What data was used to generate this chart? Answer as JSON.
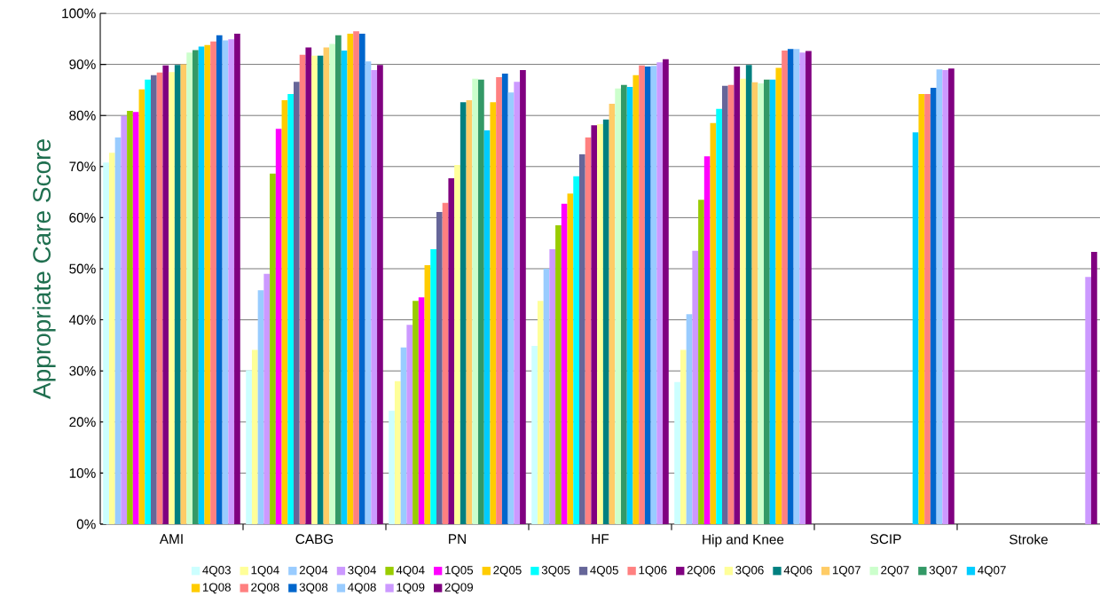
{
  "chart_data": {
    "type": "bar",
    "ylabel": "Appropriate Care Score",
    "categories": [
      "AMI",
      "CABG",
      "PN",
      "HF",
      "Hip and Knee",
      "SCIP",
      "Stroke"
    ],
    "ylim": [
      0,
      100
    ],
    "yticks": [
      {
        "value": 0,
        "label": "0%"
      },
      {
        "value": 10,
        "label": "10%"
      },
      {
        "value": 20,
        "label": "20%"
      },
      {
        "value": 30,
        "label": "30%"
      },
      {
        "value": 40,
        "label": "40%"
      },
      {
        "value": 50,
        "label": "50%"
      },
      {
        "value": 60,
        "label": "60%"
      },
      {
        "value": 70,
        "label": "70%"
      },
      {
        "value": 80,
        "label": "80%"
      },
      {
        "value": 90,
        "label": "90%"
      },
      {
        "value": 100,
        "label": "100%"
      }
    ],
    "grid": "y",
    "legend": "bottom",
    "series": [
      {
        "name": "4Q03",
        "color": "#ccffff",
        "values": [
          70.8,
          30.1,
          22.2,
          34.9,
          27.8,
          null,
          null
        ]
      },
      {
        "name": "1Q04",
        "color": "#ffff99",
        "values": [
          72.7,
          34.1,
          28.0,
          43.7,
          34.1,
          null,
          null
        ]
      },
      {
        "name": "2Q04",
        "color": "#99ccff",
        "values": [
          75.7,
          45.8,
          34.6,
          50.0,
          41.1,
          null,
          null
        ]
      },
      {
        "name": "3Q04",
        "color": "#cc99ff",
        "values": [
          79.9,
          49.0,
          39.0,
          53.8,
          53.5,
          null,
          null
        ]
      },
      {
        "name": "4Q04",
        "color": "#99cc00",
        "values": [
          80.9,
          68.6,
          43.7,
          58.5,
          63.5,
          null,
          null
        ]
      },
      {
        "name": "1Q05",
        "color": "#ff00ff",
        "values": [
          80.7,
          77.4,
          44.4,
          62.7,
          72.0,
          null,
          null
        ]
      },
      {
        "name": "2Q05",
        "color": "#ffcc00",
        "values": [
          85.1,
          83.0,
          50.7,
          64.7,
          78.5,
          null,
          null
        ]
      },
      {
        "name": "3Q05",
        "color": "#00ffff",
        "values": [
          87.0,
          84.2,
          53.8,
          68.1,
          81.3,
          null,
          null
        ]
      },
      {
        "name": "4Q05",
        "color": "#666699",
        "values": [
          87.9,
          86.6,
          61.1,
          72.4,
          85.8,
          null,
          null
        ]
      },
      {
        "name": "1Q06",
        "color": "#ff8080",
        "values": [
          88.4,
          91.9,
          62.9,
          75.7,
          86.0,
          null,
          null
        ]
      },
      {
        "name": "2Q06",
        "color": "#800080",
        "values": [
          89.8,
          93.3,
          67.7,
          78.1,
          89.6,
          null,
          null
        ]
      },
      {
        "name": "3Q06",
        "color": "#ffff99",
        "values": [
          88.5,
          91.7,
          70.3,
          78.3,
          87.2,
          null,
          null
        ]
      },
      {
        "name": "4Q06",
        "color": "#008080",
        "values": [
          89.9,
          91.7,
          82.6,
          79.2,
          89.9,
          null,
          null
        ]
      },
      {
        "name": "1Q07",
        "color": "#ffcc66",
        "values": [
          90.0,
          93.3,
          83.0,
          82.3,
          86.5,
          null,
          null
        ]
      },
      {
        "name": "2Q07",
        "color": "#ccffcc",
        "values": [
          92.3,
          94.0,
          87.2,
          85.3,
          86.3,
          null,
          null
        ]
      },
      {
        "name": "3Q07",
        "color": "#339966",
        "values": [
          92.8,
          95.7,
          87.0,
          86.0,
          87.0,
          null,
          null
        ]
      },
      {
        "name": "4Q07",
        "color": "#00ccff",
        "values": [
          93.5,
          92.7,
          77.1,
          85.6,
          87.0,
          76.7,
          null
        ]
      },
      {
        "name": "1Q08",
        "color": "#ffcc00",
        "values": [
          93.8,
          96.0,
          82.6,
          87.9,
          89.3,
          84.2,
          null
        ]
      },
      {
        "name": "2Q08",
        "color": "#ff8080",
        "values": [
          94.5,
          96.5,
          87.5,
          89.8,
          92.7,
          84.2,
          null
        ]
      },
      {
        "name": "3Q08",
        "color": "#0066cc",
        "values": [
          95.7,
          96.0,
          88.2,
          89.6,
          93.0,
          85.4,
          null
        ]
      },
      {
        "name": "4Q08",
        "color": "#99ccff",
        "values": [
          94.7,
          90.6,
          84.5,
          89.7,
          93.0,
          89.0,
          null
        ]
      },
      {
        "name": "1Q09",
        "color": "#cc99ff",
        "values": [
          94.9,
          88.9,
          86.6,
          90.4,
          92.3,
          88.9,
          48.4
        ]
      },
      {
        "name": "2Q09",
        "color": "#800080",
        "values": [
          96.0,
          89.9,
          88.9,
          91.0,
          92.6,
          89.2,
          53.3
        ]
      }
    ]
  }
}
